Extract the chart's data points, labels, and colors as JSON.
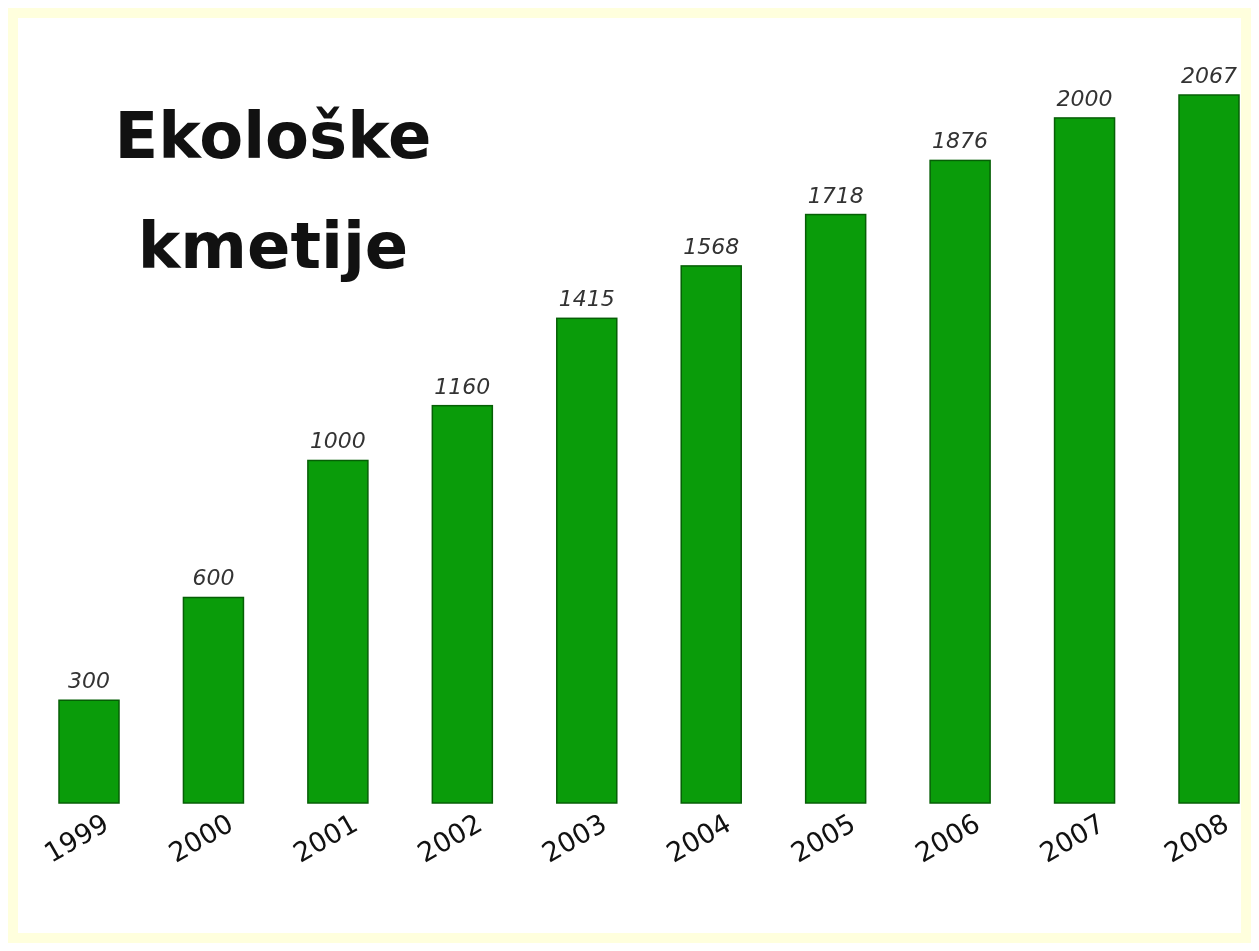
{
  "chart_data": {
    "type": "bar",
    "title": "Ekološke kmetije",
    "categories": [
      "1999",
      "2000",
      "2001",
      "2002",
      "2003",
      "2004",
      "2005",
      "2006",
      "2007",
      "2008"
    ],
    "values": [
      300,
      600,
      1000,
      1160,
      1415,
      1568,
      1718,
      1876,
      2000,
      2067
    ],
    "color": "#0a9c0a",
    "data_labels": true
  }
}
